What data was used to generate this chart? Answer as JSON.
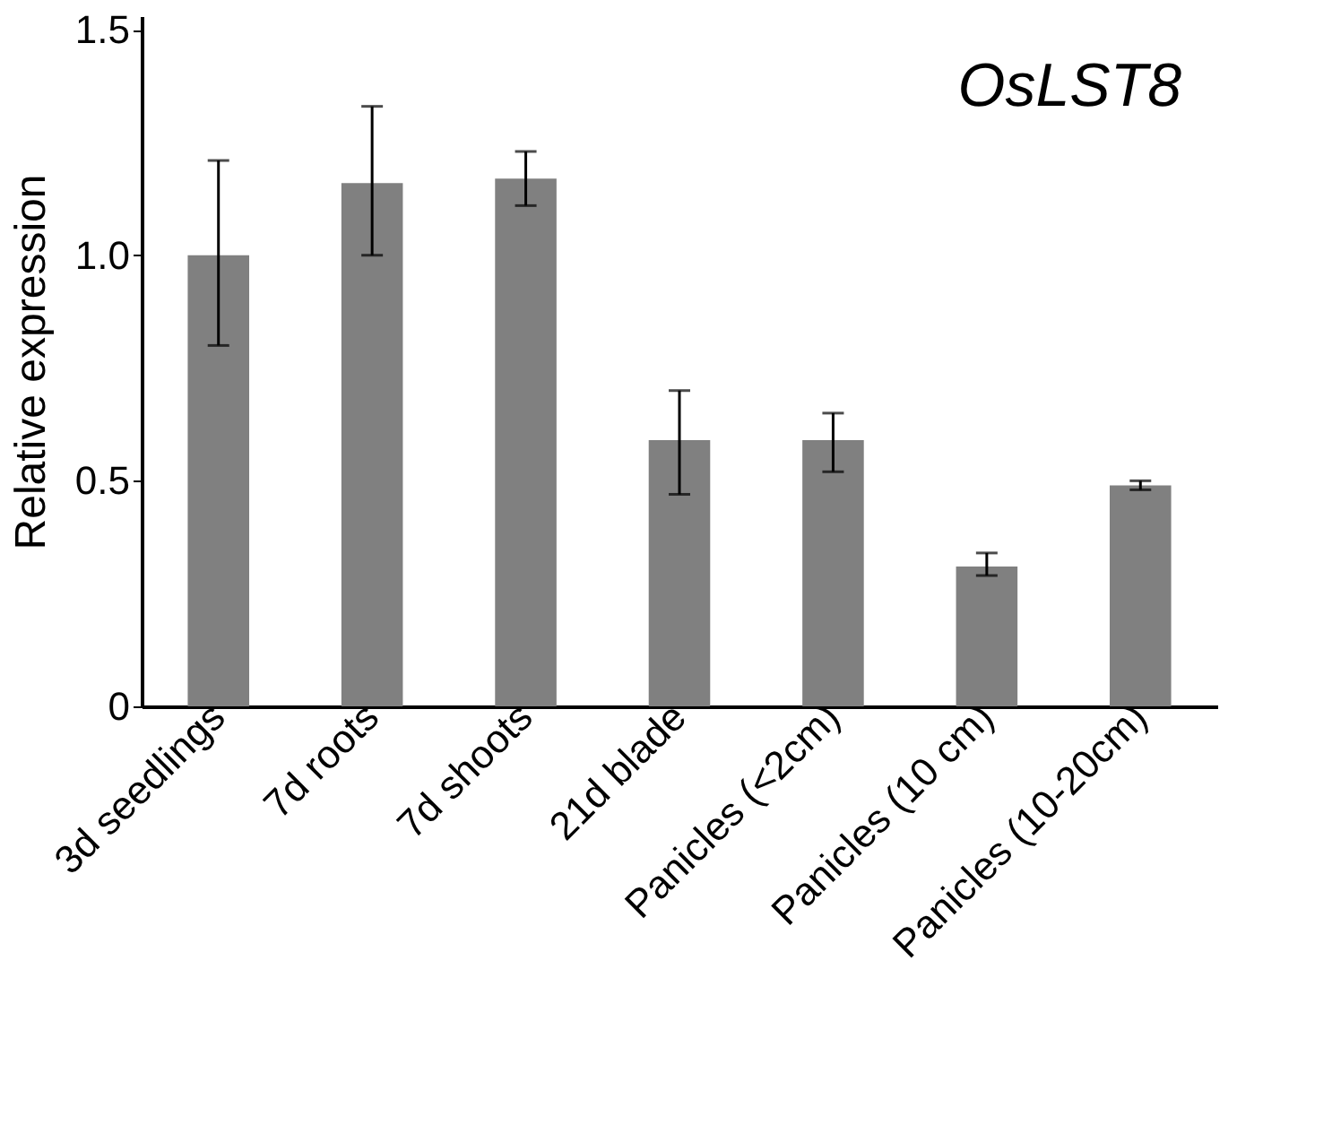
{
  "chart_data": {
    "type": "bar",
    "categories": [
      "3d seedlings",
      "7d roots",
      "7d shoots",
      "21d blade",
      "Panicles (<2cm)",
      "Panicles (10 cm)",
      "Panicles (10-20cm)"
    ],
    "values": [
      1.0,
      1.16,
      1.17,
      0.59,
      0.59,
      0.31,
      0.49
    ],
    "errors": [
      [
        0.8,
        1.21
      ],
      [
        1.0,
        1.33
      ],
      [
        1.11,
        1.23
      ],
      [
        0.47,
        0.7
      ],
      [
        0.52,
        0.65
      ],
      [
        0.29,
        0.34
      ],
      [
        0.48,
        0.5
      ]
    ],
    "color": "#808080",
    "ylabel": "Relative expression",
    "annotations": [
      "OsLST8"
    ],
    "ylim": [
      0,
      1.53
    ],
    "yticks": [
      0,
      0.5,
      {
        "value": 1,
        "label": "1.0"
      },
      1.5
    ],
    "grid": false
  }
}
